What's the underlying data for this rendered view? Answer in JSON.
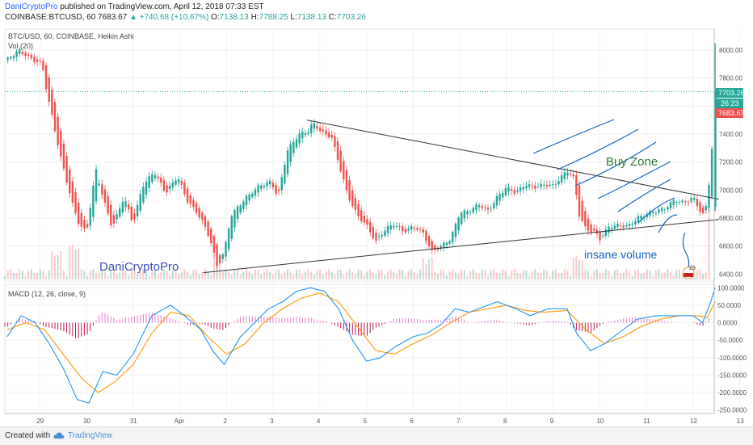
{
  "header": {
    "author": "DaniCryptoPro",
    "published": "published on TradingView.com, April 12, 2018 07:33 EST",
    "symbol_line": "COINBASE:BTCUSD, 60",
    "last": "7683.67",
    "change": "▲ +740.68 (+10.67%)",
    "o_label": "O:",
    "o_val": "7138.13",
    "h_label": "H:",
    "h_val": "7788.25",
    "l_label": "L:",
    "l_val": "7138.13",
    "c_label": "C:",
    "c_val": "7703.26"
  },
  "chart_labels": {
    "pane_title": "BTC/USD, 60, COINBASE, Heikin Ashi",
    "vol_label": "Vol (20)",
    "macd_label": "MACD (12, 26, close, 9)",
    "watermark": "DaniCryptoPro",
    "buy_zone": "Buy Zone",
    "insane_volume": "insane volume",
    "price_tag_1": "7703.26",
    "price_tag_2": "26:23",
    "price_tag_3": "7683.67",
    "flag_count": "29"
  },
  "footer": {
    "created_with": "Created with",
    "tradingview": "TradingView"
  },
  "colors": {
    "bull": "#26a69a",
    "bear": "#ef5350",
    "macd_line": "#2196f3",
    "signal_line": "#ff9800",
    "annotation": "#1565c0",
    "buy_zone_text": "#2e7d32"
  },
  "chart_data": [
    {
      "type": "candlestick",
      "title": "BTC/USD, 60, COINBASE, Heikin Ashi",
      "x_ticks": [
        "29",
        "30",
        "31",
        "Apr",
        "2",
        "3",
        "4",
        "5",
        "6",
        "7",
        "8",
        "9",
        "10",
        "11",
        "12",
        "13"
      ],
      "y_ticks": [
        6400,
        6600,
        6800,
        7000,
        7200,
        7400,
        7600,
        7800,
        8000
      ],
      "ylim": [
        6350,
        8150
      ],
      "x_range_days": [
        28.25,
        43.45
      ],
      "price_path": [
        [
          28.3,
          7930
        ],
        [
          28.55,
          8000
        ],
        [
          28.8,
          7940
        ],
        [
          29.05,
          7900
        ],
        [
          29.15,
          7700
        ],
        [
          29.45,
          7230
        ],
        [
          29.7,
          6900
        ],
        [
          29.85,
          6750
        ],
        [
          30.0,
          6700
        ],
        [
          30.2,
          7150
        ],
        [
          30.35,
          6950
        ],
        [
          30.55,
          6730
        ],
        [
          30.8,
          6950
        ],
        [
          31.0,
          6760
        ],
        [
          31.2,
          7030
        ],
        [
          31.45,
          7130
        ],
        [
          31.7,
          6980
        ],
        [
          31.95,
          7100
        ],
        [
          32.15,
          6930
        ],
        [
          32.45,
          6800
        ],
        [
          32.65,
          6650
        ],
        [
          32.8,
          6450
        ],
        [
          32.95,
          6560
        ],
        [
          33.1,
          6820
        ],
        [
          33.4,
          6940
        ],
        [
          33.7,
          7030
        ],
        [
          33.95,
          7060
        ],
        [
          34.1,
          6950
        ],
        [
          34.3,
          7280
        ],
        [
          34.55,
          7400
        ],
        [
          34.75,
          7420
        ],
        [
          34.85,
          7480
        ],
        [
          35.05,
          7410
        ],
        [
          35.25,
          7380
        ],
        [
          35.4,
          7200
        ],
        [
          35.6,
          6960
        ],
        [
          35.8,
          6820
        ],
        [
          36.0,
          6750
        ],
        [
          36.2,
          6630
        ],
        [
          36.4,
          6720
        ],
        [
          36.6,
          6760
        ],
        [
          36.8,
          6700
        ],
        [
          37.0,
          6740
        ],
        [
          37.2,
          6700
        ],
        [
          37.4,
          6560
        ],
        [
          37.6,
          6600
        ],
        [
          37.8,
          6650
        ],
        [
          38.0,
          6840
        ],
        [
          38.2,
          6850
        ],
        [
          38.4,
          6900
        ],
        [
          38.6,
          6850
        ],
        [
          38.8,
          6950
        ],
        [
          39.0,
          7020
        ],
        [
          39.2,
          6980
        ],
        [
          39.4,
          7040
        ],
        [
          39.6,
          7020
        ],
        [
          39.8,
          7040
        ],
        [
          40.0,
          7030
        ],
        [
          40.3,
          7140
        ],
        [
          40.45,
          7080
        ],
        [
          40.55,
          6830
        ],
        [
          40.7,
          6720
        ],
        [
          40.9,
          6700
        ],
        [
          41.0,
          6650
        ],
        [
          41.2,
          6740
        ],
        [
          41.4,
          6750
        ],
        [
          41.6,
          6740
        ],
        [
          41.8,
          6800
        ],
        [
          42.0,
          6830
        ],
        [
          42.2,
          6850
        ],
        [
          42.4,
          6870
        ],
        [
          42.6,
          6930
        ],
        [
          42.8,
          6910
        ],
        [
          43.0,
          6950
        ],
        [
          43.1,
          6880
        ],
        [
          43.2,
          6820
        ],
        [
          43.3,
          6900
        ],
        [
          43.4,
          7300
        ],
        [
          43.47,
          7703
        ]
      ],
      "last_price": 7703.26,
      "trendlines": [
        {
          "name": "upper",
          "from": [
            34.72,
            7500
          ],
          "to": [
            43.55,
            6935
          ]
        },
        {
          "name": "lower",
          "from": [
            32.5,
            6410
          ],
          "to": [
            43.55,
            6790
          ]
        }
      ],
      "volume": {
        "label": "Vol (20)",
        "spikes": [
          [
            29.35,
            0.55
          ],
          [
            29.75,
            0.75
          ],
          [
            32.8,
            0.45
          ],
          [
            37.3,
            0.35
          ],
          [
            40.55,
            0.4
          ],
          [
            43.4,
            2.6
          ]
        ]
      }
    },
    {
      "type": "macd",
      "title": "MACD (12, 26, close, 9)",
      "y_ticks": [
        100,
        50,
        0,
        -50,
        -100,
        -150,
        -200,
        -250
      ],
      "ylim": [
        -260,
        110
      ],
      "macd_path": [
        [
          28.3,
          -40
        ],
        [
          28.6,
          20
        ],
        [
          28.9,
          0
        ],
        [
          29.2,
          -60
        ],
        [
          29.5,
          -130
        ],
        [
          29.8,
          -220
        ],
        [
          30.05,
          -230
        ],
        [
          30.35,
          -140
        ],
        [
          30.65,
          -150
        ],
        [
          31.0,
          -90
        ],
        [
          31.4,
          20
        ],
        [
          31.8,
          50
        ],
        [
          32.1,
          20
        ],
        [
          32.45,
          -20
        ],
        [
          32.7,
          -80
        ],
        [
          32.95,
          -120
        ],
        [
          33.3,
          -40
        ],
        [
          33.6,
          0
        ],
        [
          33.9,
          40
        ],
        [
          34.2,
          60
        ],
        [
          34.5,
          90
        ],
        [
          34.8,
          100
        ],
        [
          35.1,
          90
        ],
        [
          35.4,
          40
        ],
        [
          35.7,
          -50
        ],
        [
          36.0,
          -110
        ],
        [
          36.3,
          -100
        ],
        [
          36.6,
          -70
        ],
        [
          37.0,
          -40
        ],
        [
          37.3,
          -30
        ],
        [
          37.6,
          -5
        ],
        [
          37.9,
          40
        ],
        [
          38.2,
          30
        ],
        [
          38.5,
          45
        ],
        [
          38.8,
          60
        ],
        [
          39.2,
          40
        ],
        [
          39.5,
          20
        ],
        [
          39.9,
          40
        ],
        [
          40.3,
          40
        ],
        [
          40.5,
          -30
        ],
        [
          40.8,
          -80
        ],
        [
          41.1,
          -60
        ],
        [
          41.4,
          -30
        ],
        [
          41.8,
          10
        ],
        [
          42.2,
          20
        ],
        [
          42.6,
          20
        ],
        [
          43.0,
          20
        ],
        [
          43.2,
          0
        ],
        [
          43.35,
          50
        ],
        [
          43.47,
          100
        ]
      ],
      "signal_path": [
        [
          28.3,
          -20
        ],
        [
          28.7,
          0
        ],
        [
          29.1,
          -20
        ],
        [
          29.5,
          -90
        ],
        [
          29.9,
          -160
        ],
        [
          30.25,
          -200
        ],
        [
          30.6,
          -170
        ],
        [
          31.0,
          -120
        ],
        [
          31.4,
          -30
        ],
        [
          31.8,
          30
        ],
        [
          32.2,
          20
        ],
        [
          32.6,
          -40
        ],
        [
          33.0,
          -90
        ],
        [
          33.4,
          -60
        ],
        [
          33.8,
          0
        ],
        [
          34.2,
          40
        ],
        [
          34.6,
          70
        ],
        [
          35.0,
          85
        ],
        [
          35.4,
          60
        ],
        [
          35.8,
          -10
        ],
        [
          36.2,
          -80
        ],
        [
          36.6,
          -90
        ],
        [
          37.0,
          -60
        ],
        [
          37.4,
          -35
        ],
        [
          37.8,
          0
        ],
        [
          38.2,
          30
        ],
        [
          38.6,
          40
        ],
        [
          39.0,
          50
        ],
        [
          39.4,
          35
        ],
        [
          39.8,
          30
        ],
        [
          40.3,
          35
        ],
        [
          40.7,
          -20
        ],
        [
          41.1,
          -60
        ],
        [
          41.5,
          -40
        ],
        [
          41.9,
          -10
        ],
        [
          42.3,
          10
        ],
        [
          42.7,
          20
        ],
        [
          43.1,
          20
        ],
        [
          43.3,
          15
        ],
        [
          43.47,
          60
        ]
      ]
    }
  ]
}
